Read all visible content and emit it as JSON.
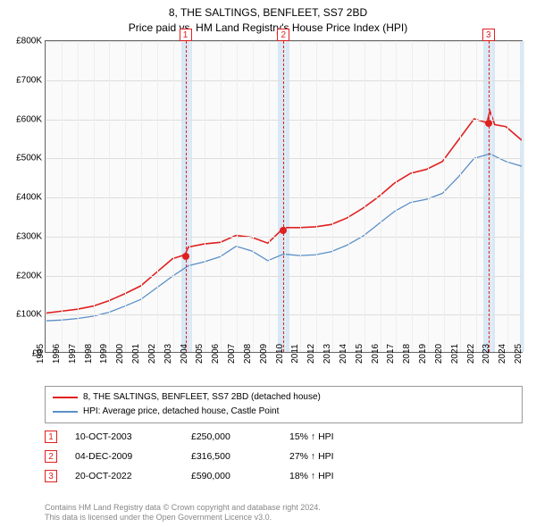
{
  "title_line1": "8, THE SALTINGS, BENFLEET, SS7 2BD",
  "title_line2": "Price paid vs. HM Land Registry's House Price Index (HPI)",
  "chart": {
    "type": "line",
    "background": "#fafafa",
    "grid_color": "#dddddd",
    "border_color": "#666666",
    "x_years": [
      1995,
      1996,
      1997,
      1998,
      1999,
      2000,
      2001,
      2002,
      2003,
      2004,
      2005,
      2006,
      2007,
      2008,
      2009,
      2010,
      2011,
      2012,
      2013,
      2014,
      2015,
      2016,
      2017,
      2018,
      2019,
      2020,
      2021,
      2022,
      2023,
      2024,
      2025
    ],
    "y_ticks": [
      "£0",
      "£100K",
      "£200K",
      "£300K",
      "£400K",
      "£500K",
      "£600K",
      "£700K",
      "£800K"
    ],
    "ylim": [
      0,
      800000
    ],
    "bands": [
      {
        "from": 2003.5,
        "to": 2004.2,
        "color": "#d9e8f5"
      },
      {
        "from": 2009.6,
        "to": 2010.3,
        "color": "#d9e8f5"
      },
      {
        "from": 2022.5,
        "to": 2023.2,
        "color": "#d9e8f5"
      },
      {
        "from": 2024.8,
        "to": 2025.0,
        "color": "#d9e8f5"
      }
    ],
    "vlines": [
      {
        "year": 2003.78,
        "color": "#e02020"
      },
      {
        "year": 2009.93,
        "color": "#e02020"
      },
      {
        "year": 2022.8,
        "color": "#e02020"
      }
    ],
    "markers": [
      {
        "num": "1",
        "year": 2003.78,
        "box_y": -14
      },
      {
        "num": "2",
        "year": 2009.93,
        "box_y": -14
      },
      {
        "num": "3",
        "year": 2022.8,
        "box_y": -14
      }
    ],
    "dots": [
      {
        "year": 2003.78,
        "value": 250000,
        "color": "#e02020"
      },
      {
        "year": 2009.93,
        "value": 316500,
        "color": "#e02020"
      },
      {
        "year": 2022.8,
        "value": 590000,
        "color": "#e02020"
      }
    ],
    "series": [
      {
        "name": "8, THE SALTINGS, BENFLEET, SS7 2BD (detached house)",
        "color": "#e02020",
        "width": 1.6,
        "points": [
          [
            1995,
            100000
          ],
          [
            1996,
            105000
          ],
          [
            1997,
            110000
          ],
          [
            1998,
            118000
          ],
          [
            1999,
            132000
          ],
          [
            2000,
            150000
          ],
          [
            2001,
            170000
          ],
          [
            2002,
            205000
          ],
          [
            2003,
            240000
          ],
          [
            2003.78,
            250000
          ],
          [
            2004,
            270000
          ],
          [
            2005,
            278000
          ],
          [
            2006,
            282000
          ],
          [
            2007,
            300000
          ],
          [
            2008,
            295000
          ],
          [
            2009,
            280000
          ],
          [
            2009.93,
            316500
          ],
          [
            2010,
            320000
          ],
          [
            2011,
            320000
          ],
          [
            2012,
            322000
          ],
          [
            2013,
            328000
          ],
          [
            2014,
            345000
          ],
          [
            2015,
            370000
          ],
          [
            2016,
            400000
          ],
          [
            2017,
            435000
          ],
          [
            2018,
            460000
          ],
          [
            2019,
            470000
          ],
          [
            2020,
            490000
          ],
          [
            2021,
            545000
          ],
          [
            2022,
            600000
          ],
          [
            2022.8,
            590000
          ],
          [
            2023,
            620000
          ],
          [
            2023.3,
            585000
          ],
          [
            2024,
            580000
          ],
          [
            2025,
            545000
          ]
        ]
      },
      {
        "name": "HPI: Average price, detached house, Castle Point",
        "color": "#5b8fc7",
        "width": 1.3,
        "points": [
          [
            1995,
            80000
          ],
          [
            1996,
            82000
          ],
          [
            1997,
            86000
          ],
          [
            1998,
            92000
          ],
          [
            1999,
            102000
          ],
          [
            2000,
            118000
          ],
          [
            2001,
            135000
          ],
          [
            2002,
            165000
          ],
          [
            2003,
            195000
          ],
          [
            2004,
            222000
          ],
          [
            2005,
            232000
          ],
          [
            2006,
            245000
          ],
          [
            2007,
            272000
          ],
          [
            2008,
            260000
          ],
          [
            2009,
            235000
          ],
          [
            2010,
            252000
          ],
          [
            2011,
            248000
          ],
          [
            2012,
            250000
          ],
          [
            2013,
            258000
          ],
          [
            2014,
            275000
          ],
          [
            2015,
            298000
          ],
          [
            2016,
            330000
          ],
          [
            2017,
            362000
          ],
          [
            2018,
            385000
          ],
          [
            2019,
            393000
          ],
          [
            2020,
            408000
          ],
          [
            2021,
            450000
          ],
          [
            2022,
            498000
          ],
          [
            2023,
            510000
          ],
          [
            2024,
            490000
          ],
          [
            2025,
            478000
          ]
        ]
      }
    ]
  },
  "legend": [
    {
      "color": "#e02020",
      "label": "8, THE SALTINGS, BENFLEET, SS7 2BD (detached house)"
    },
    {
      "color": "#5b8fc7",
      "label": "HPI: Average price, detached house, Castle Point"
    }
  ],
  "events": [
    {
      "num": "1",
      "date": "10-OCT-2003",
      "price": "£250,000",
      "delta": "15% ↑ HPI"
    },
    {
      "num": "2",
      "date": "04-DEC-2009",
      "price": "£316,500",
      "delta": "27% ↑ HPI"
    },
    {
      "num": "3",
      "date": "20-OCT-2022",
      "price": "£590,000",
      "delta": "18% ↑ HPI"
    }
  ],
  "footer_line1": "Contains HM Land Registry data © Crown copyright and database right 2024.",
  "footer_line2": "This data is licensed under the Open Government Licence v3.0.",
  "marker_border_color": "#e02020"
}
